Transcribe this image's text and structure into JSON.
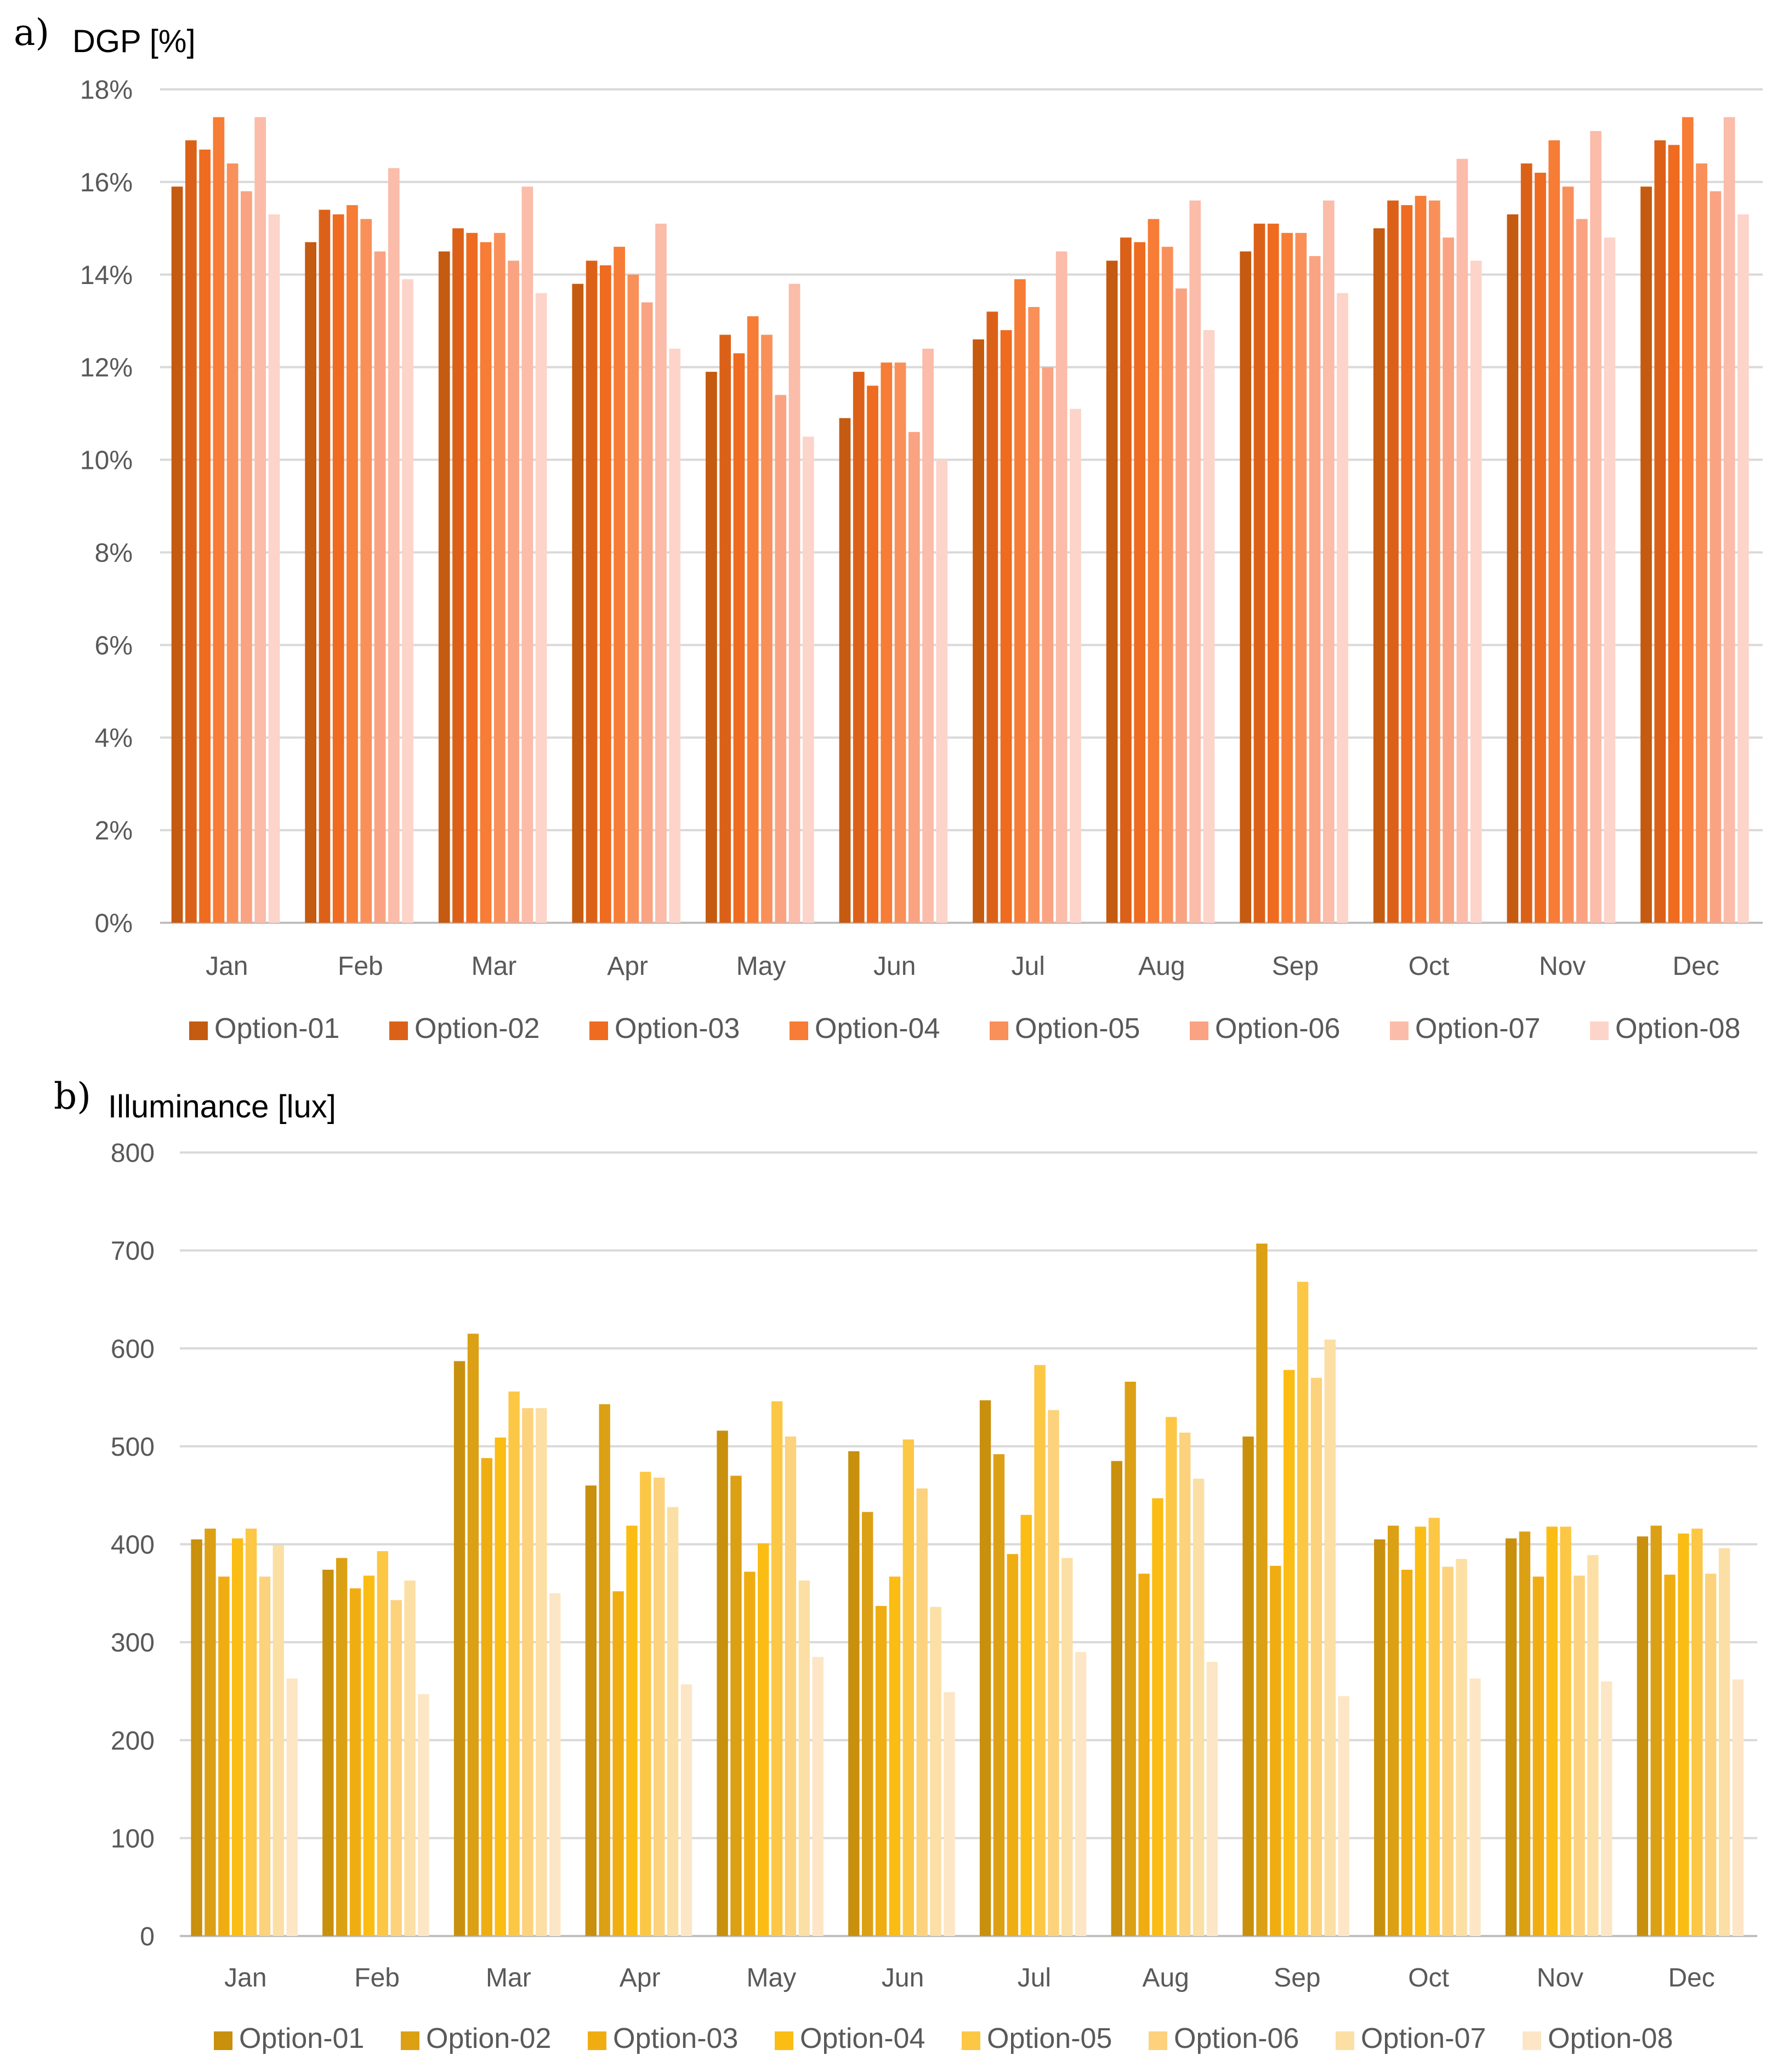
{
  "charts": [
    {
      "panel": "a)",
      "colors": [
        "#c55a11",
        "#dc6118",
        "#ee6b20",
        "#f77c35",
        "#f9905a",
        "#faa383",
        "#fbbcaa",
        "#fdd4c9"
      ],
      "chart_data": {
        "type": "bar",
        "ylabel": "DGP [%]",
        "ylim": [
          0,
          18
        ],
        "yticks": [
          "0%",
          "2%",
          "4%",
          "6%",
          "8%",
          "10%",
          "12%",
          "14%",
          "16%",
          "18%"
        ],
        "grid": true,
        "legend": "bottom",
        "categories": [
          "Jan",
          "Feb",
          "Mar",
          "Apr",
          "May",
          "Jun",
          "Jul",
          "Aug",
          "Sep",
          "Oct",
          "Nov",
          "Dec"
        ],
        "series": [
          {
            "name": "Option-01",
            "values": [
              15.9,
              14.7,
              14.5,
              13.8,
              11.9,
              10.9,
              12.6,
              14.3,
              14.5,
              15.0,
              15.3,
              15.9
            ]
          },
          {
            "name": "Option-02",
            "values": [
              16.9,
              15.4,
              15.0,
              14.3,
              12.7,
              11.9,
              13.2,
              14.8,
              15.1,
              15.6,
              16.4,
              16.9
            ]
          },
          {
            "name": "Option-03",
            "values": [
              16.7,
              15.3,
              14.9,
              14.2,
              12.3,
              11.6,
              12.8,
              14.7,
              15.1,
              15.5,
              16.2,
              16.8
            ]
          },
          {
            "name": "Option-04",
            "values": [
              17.4,
              15.5,
              14.7,
              14.6,
              13.1,
              12.1,
              13.9,
              15.2,
              14.9,
              15.7,
              16.9,
              17.4
            ]
          },
          {
            "name": "Option-05",
            "values": [
              16.4,
              15.2,
              14.9,
              14.0,
              12.7,
              12.1,
              13.3,
              14.6,
              14.9,
              15.6,
              15.9,
              16.4
            ]
          },
          {
            "name": "Option-06",
            "values": [
              15.8,
              14.5,
              14.3,
              13.4,
              11.4,
              10.6,
              12.0,
              13.7,
              14.4,
              14.8,
              15.2,
              15.8
            ]
          },
          {
            "name": "Option-07",
            "values": [
              17.4,
              16.3,
              15.9,
              15.1,
              13.8,
              12.4,
              14.5,
              15.6,
              15.6,
              16.5,
              17.1,
              17.4
            ]
          },
          {
            "name": "Option-08",
            "values": [
              15.3,
              13.9,
              13.6,
              12.4,
              10.5,
              10.0,
              11.1,
              12.8,
              13.6,
              14.3,
              14.8,
              15.3
            ]
          }
        ]
      }
    },
    {
      "panel": "b)",
      "colors": [
        "#c8900d",
        "#dca015",
        "#f0ad12",
        "#fbbc14",
        "#fcc745",
        "#fcd27c",
        "#fcdfa4",
        "#fde6c6"
      ],
      "chart_data": {
        "type": "bar",
        "ylabel": "Illuminance [lux]",
        "ylim": [
          0,
          800
        ],
        "yticks": [
          "0",
          "100",
          "200",
          "300",
          "400",
          "500",
          "600",
          "700",
          "800"
        ],
        "grid": true,
        "legend": "bottom",
        "categories": [
          "Jan",
          "Feb",
          "Mar",
          "Apr",
          "May",
          "Jun",
          "Jul",
          "Aug",
          "Sep",
          "Oct",
          "Nov",
          "Dec"
        ],
        "series": [
          {
            "name": "Option-01",
            "values": [
              405,
              374,
              587,
              460,
              516,
              495,
              547,
              485,
              510,
              405,
              406,
              408
            ]
          },
          {
            "name": "Option-02",
            "values": [
              416,
              386,
              615,
              543,
              470,
              433,
              492,
              566,
              707,
              419,
              413,
              419
            ]
          },
          {
            "name": "Option-03",
            "values": [
              367,
              355,
              488,
              352,
              372,
              337,
              390,
              370,
              378,
              374,
              367,
              369
            ]
          },
          {
            "name": "Option-04",
            "values": [
              406,
              368,
              509,
              419,
              401,
              367,
              430,
              447,
              578,
              418,
              418,
              411
            ]
          },
          {
            "name": "Option-05",
            "values": [
              416,
              393,
              556,
              474,
              546,
              507,
              583,
              530,
              668,
              427,
              418,
              416
            ]
          },
          {
            "name": "Option-06",
            "values": [
              367,
              343,
              539,
              468,
              510,
              457,
              537,
              514,
              570,
              377,
              368,
              370
            ]
          },
          {
            "name": "Option-07",
            "values": [
              399,
              363,
              539,
              438,
              363,
              336,
              386,
              467,
              609,
              385,
              389,
              396
            ]
          },
          {
            "name": "Option-08",
            "values": [
              263,
              247,
              350,
              257,
              285,
              249,
              290,
              280,
              245,
              263,
              260,
              262
            ]
          }
        ]
      }
    }
  ]
}
